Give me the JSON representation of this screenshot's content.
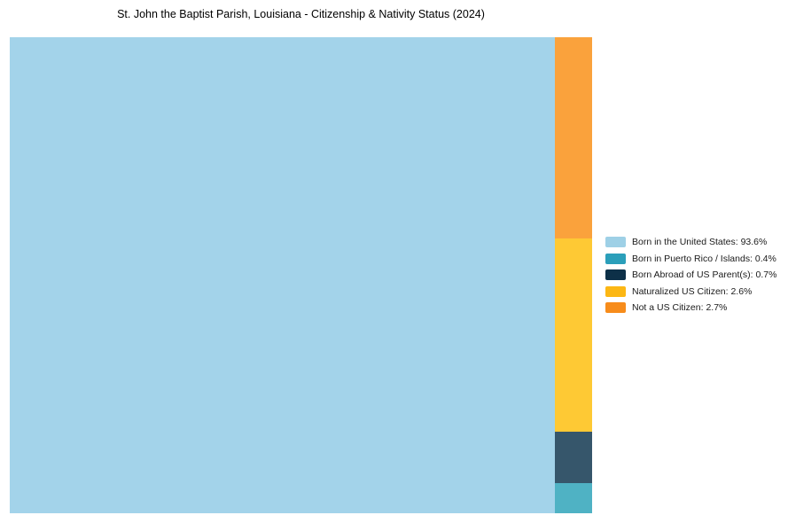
{
  "page": {
    "background_color": "#ffffff"
  },
  "chart_data": {
    "type": "treemap",
    "title": "St. John the Baptist Parish, Louisiana - Citizenship & Nativity Status (2024)",
    "unit": "%",
    "series": [
      {
        "name": "Born in the United States",
        "value": 93.6,
        "tile_color": "#A3D3EA",
        "legend_color": "#9ED0E6"
      },
      {
        "name": "Born in Puerto Rico / Islands",
        "value": 0.4,
        "tile_color": "#4FB2C4",
        "legend_color": "#2B9FBA"
      },
      {
        "name": "Born Abroad of US Parent(s)",
        "value": 0.7,
        "tile_color": "#36566B",
        "legend_color": "#0D3048"
      },
      {
        "name": "Naturalized US Citizen",
        "value": 2.6,
        "tile_color": "#FEC934",
        "legend_color": "#FCB714"
      },
      {
        "name": "Not a US Citizen",
        "value": 2.7,
        "tile_color": "#FAA23C",
        "legend_color": "#F78C1B"
      }
    ],
    "legend_position": "right-center",
    "legend_label_format": "{name}: {value}%",
    "layout": {
      "main_series_index": 0,
      "side_column_order_top_to_bottom": [
        4,
        3,
        2,
        1
      ]
    }
  }
}
